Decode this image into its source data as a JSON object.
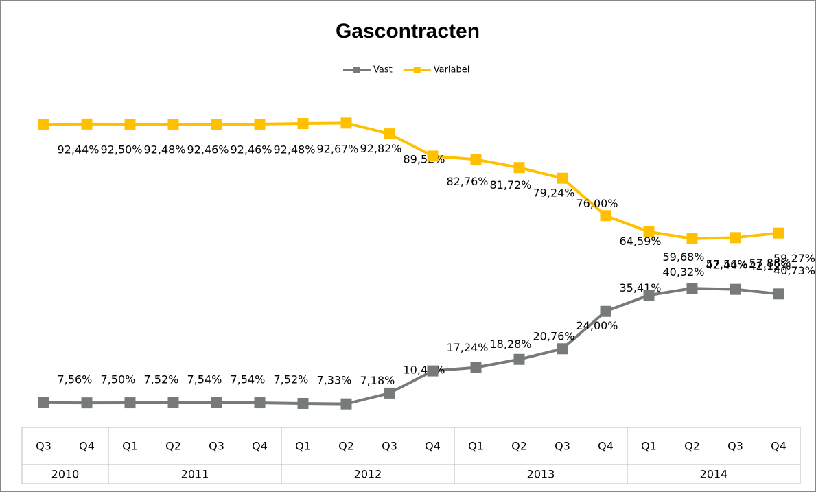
{
  "chart_data": {
    "type": "line",
    "title": "Gascontracten",
    "categories": [
      "Q3",
      "Q4",
      "Q1",
      "Q2",
      "Q3",
      "Q4",
      "Q1",
      "Q2",
      "Q3",
      "Q4",
      "Q1",
      "Q2",
      "Q3",
      "Q4",
      "Q1",
      "Q2",
      "Q3",
      "Q4"
    ],
    "category_groups": [
      {
        "label": "2010",
        "count": 2
      },
      {
        "label": "2011",
        "count": 4
      },
      {
        "label": "2012",
        "count": 4
      },
      {
        "label": "2013",
        "count": 4
      },
      {
        "label": "2014",
        "count": 4
      }
    ],
    "ylim": [
      0,
      100
    ],
    "legend": "top",
    "series": [
      {
        "name": "Vast",
        "color": "#767b7a",
        "values": [
          7.56,
          7.5,
          7.52,
          7.54,
          7.54,
          7.52,
          7.33,
          7.18,
          10.48,
          17.24,
          18.28,
          20.76,
          24.0,
          35.41,
          40.32,
          42.44,
          42.12,
          40.73
        ],
        "value_labels": [
          "7,56%",
          "7,50%",
          "7,52%",
          "7,54%",
          "7,54%",
          "7,52%",
          "7,33%",
          "7,18%",
          "10,48%",
          "17,24%",
          "18,28%",
          "20,76%",
          "24,00%",
          "35,41%",
          "40,32%",
          "42,44%",
          "42,12%",
          "40,73%"
        ]
      },
      {
        "name": "Variabel",
        "color": "#ffc000",
        "values": [
          92.44,
          92.5,
          92.48,
          92.46,
          92.46,
          92.48,
          92.67,
          92.82,
          89.52,
          82.76,
          81.72,
          79.24,
          76.0,
          64.59,
          59.68,
          57.56,
          57.88,
          59.27
        ],
        "value_labels": [
          "92,44%",
          "92,50%",
          "92,48%",
          "92,46%",
          "92,46%",
          "92,48%",
          "92,67%",
          "92,82%",
          "89,52%",
          "82,76%",
          "81,72%",
          "79,24%",
          "76,00%",
          "64,59%",
          "59,68%",
          "57,56%",
          "57,88%",
          "59,27%"
        ]
      }
    ]
  }
}
